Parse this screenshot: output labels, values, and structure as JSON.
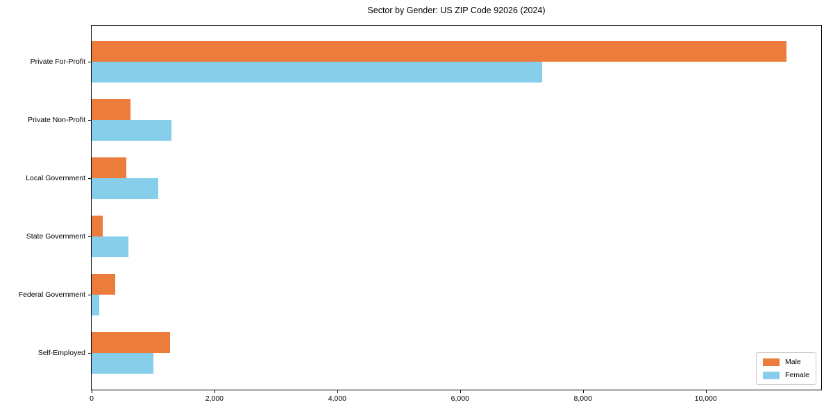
{
  "figure": {
    "background": "#ffffff",
    "text_color": "#000000",
    "spine_color": "#000000",
    "legend_border_color": "#cccccc"
  },
  "chart_data": {
    "type": "bar",
    "orientation": "horizontal",
    "title": "Sector by Gender: US ZIP Code 92026 (2024)",
    "xlabel": "",
    "ylabel": "",
    "grid": false,
    "categories_order": "top-to-bottom",
    "categories": [
      "Private For-Profit",
      "Private Non-Profit",
      "Local Government",
      "State Government",
      "Federal Government",
      "Self-Employed"
    ],
    "series": [
      {
        "name": "Male",
        "color": "#ec7c3c",
        "values": [
          11310,
          630,
          560,
          175,
          380,
          1280
        ]
      },
      {
        "name": "Female",
        "color": "#87ceeb",
        "values": [
          7340,
          1300,
          1090,
          595,
          125,
          1000
        ]
      }
    ],
    "xlim": [
      0,
      11880
    ],
    "x_ticks": [
      {
        "value": 0,
        "label": "0"
      },
      {
        "value": 2000,
        "label": "2,000"
      },
      {
        "value": 4000,
        "label": "4,000"
      },
      {
        "value": 6000,
        "label": "6,000"
      },
      {
        "value": 8000,
        "label": "8,000"
      },
      {
        "value": 10000,
        "label": "10,000"
      }
    ],
    "legend": {
      "position": "lower right",
      "entries": [
        "Male",
        "Female"
      ]
    }
  }
}
